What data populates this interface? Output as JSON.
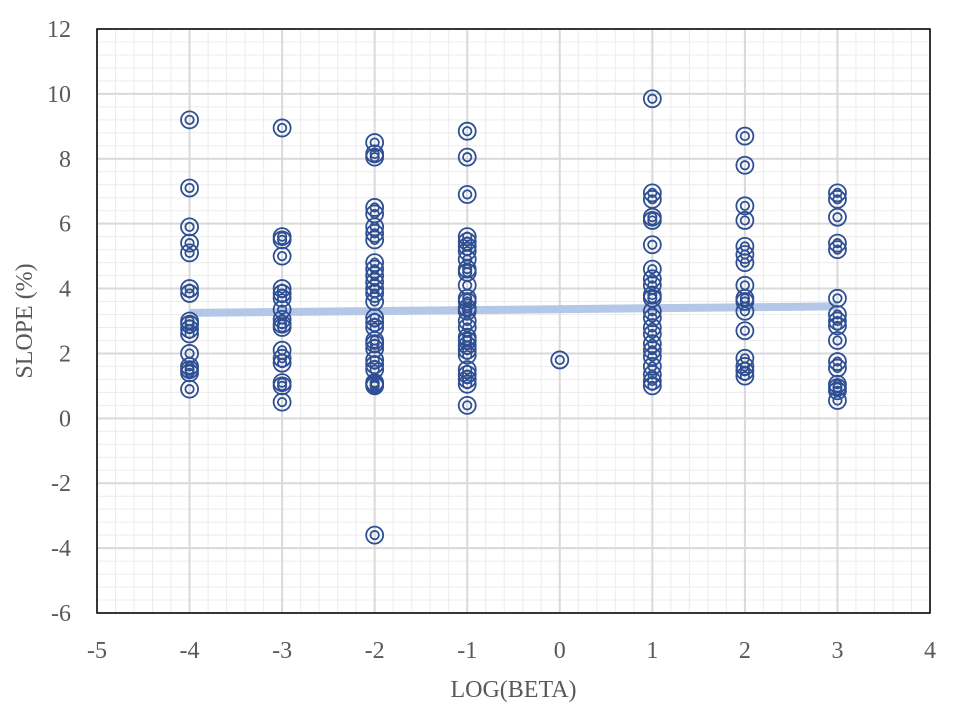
{
  "chart_data": {
    "type": "scatter",
    "title": "",
    "xlabel": "LOG(BETA)",
    "ylabel": "SLOPE (%)",
    "xlim": [
      -5,
      4
    ],
    "ylim": [
      -6,
      12
    ],
    "x_ticks": [
      -5,
      -4,
      -3,
      -2,
      -1,
      0,
      1,
      2,
      3,
      4
    ],
    "y_ticks": [
      -6,
      -4,
      -2,
      0,
      2,
      4,
      6,
      8,
      10,
      12
    ],
    "grid": "major and minor",
    "marker": "double circle",
    "colors": {
      "marker": "#2f4f93",
      "trendline": "#b4c7e7",
      "major_grid": "#d9d9d9",
      "minor_grid": "#ececec",
      "text": "#595959"
    },
    "points": [
      {
        "x": -4,
        "y": 9.2
      },
      {
        "x": -4,
        "y": 7.1
      },
      {
        "x": -4,
        "y": 5.9
      },
      {
        "x": -4,
        "y": 5.4
      },
      {
        "x": -4,
        "y": 5.1
      },
      {
        "x": -4,
        "y": 4.0
      },
      {
        "x": -4,
        "y": 3.85
      },
      {
        "x": -4,
        "y": 3.0
      },
      {
        "x": -4,
        "y": 2.9
      },
      {
        "x": -4,
        "y": 2.75
      },
      {
        "x": -4,
        "y": 2.6
      },
      {
        "x": -4,
        "y": 2.0
      },
      {
        "x": -4,
        "y": 1.6
      },
      {
        "x": -4,
        "y": 1.5
      },
      {
        "x": -4,
        "y": 1.4
      },
      {
        "x": -4,
        "y": 0.9
      },
      {
        "x": -3,
        "y": 8.95
      },
      {
        "x": -3,
        "y": 5.6
      },
      {
        "x": -3,
        "y": 5.5
      },
      {
        "x": -3,
        "y": 5.0
      },
      {
        "x": -3,
        "y": 4.0
      },
      {
        "x": -3,
        "y": 3.85
      },
      {
        "x": -3,
        "y": 3.7
      },
      {
        "x": -3,
        "y": 3.35
      },
      {
        "x": -3,
        "y": 3.05
      },
      {
        "x": -3,
        "y": 2.9
      },
      {
        "x": -3,
        "y": 2.8
      },
      {
        "x": -3,
        "y": 2.1
      },
      {
        "x": -3,
        "y": 1.85
      },
      {
        "x": -3,
        "y": 1.7
      },
      {
        "x": -3,
        "y": 1.1
      },
      {
        "x": -3,
        "y": 1.0
      },
      {
        "x": -3,
        "y": 0.5
      },
      {
        "x": -2,
        "y": 8.5
      },
      {
        "x": -2,
        "y": 8.15
      },
      {
        "x": -2,
        "y": 8.05
      },
      {
        "x": -2,
        "y": 6.5
      },
      {
        "x": -2,
        "y": 6.3
      },
      {
        "x": -2,
        "y": 5.9
      },
      {
        "x": -2,
        "y": 5.7
      },
      {
        "x": -2,
        "y": 5.5
      },
      {
        "x": -2,
        "y": 4.8
      },
      {
        "x": -2,
        "y": 4.6
      },
      {
        "x": -2,
        "y": 4.4
      },
      {
        "x": -2,
        "y": 4.2
      },
      {
        "x": -2,
        "y": 4.0
      },
      {
        "x": -2,
        "y": 3.85
      },
      {
        "x": -2,
        "y": 3.6
      },
      {
        "x": -2,
        "y": 3.1
      },
      {
        "x": -2,
        "y": 2.95
      },
      {
        "x": -2,
        "y": 2.8
      },
      {
        "x": -2,
        "y": 2.4
      },
      {
        "x": -2,
        "y": 2.3
      },
      {
        "x": -2,
        "y": 2.15
      },
      {
        "x": -2,
        "y": 1.8
      },
      {
        "x": -2,
        "y": 1.65
      },
      {
        "x": -2,
        "y": 1.5
      },
      {
        "x": -2,
        "y": 1.1
      },
      {
        "x": -2,
        "y": 1.05
      },
      {
        "x": -2,
        "y": 1.0
      },
      {
        "x": -2,
        "y": -3.6
      },
      {
        "x": -1,
        "y": 8.85
      },
      {
        "x": -1,
        "y": 8.05
      },
      {
        "x": -1,
        "y": 6.9
      },
      {
        "x": -1,
        "y": 5.6
      },
      {
        "x": -1,
        "y": 5.45
      },
      {
        "x": -1,
        "y": 5.3
      },
      {
        "x": -1,
        "y": 5.15
      },
      {
        "x": -1,
        "y": 4.9
      },
      {
        "x": -1,
        "y": 4.6
      },
      {
        "x": -1,
        "y": 4.5
      },
      {
        "x": -1,
        "y": 4.1
      },
      {
        "x": -1,
        "y": 3.7
      },
      {
        "x": -1,
        "y": 3.6
      },
      {
        "x": -1,
        "y": 3.4
      },
      {
        "x": -1,
        "y": 3.3
      },
      {
        "x": -1,
        "y": 3.0
      },
      {
        "x": -1,
        "y": 2.8
      },
      {
        "x": -1,
        "y": 2.5
      },
      {
        "x": -1,
        "y": 2.4
      },
      {
        "x": -1,
        "y": 2.25
      },
      {
        "x": -1,
        "y": 2.1
      },
      {
        "x": -1,
        "y": 1.95
      },
      {
        "x": -1,
        "y": 1.5
      },
      {
        "x": -1,
        "y": 1.35
      },
      {
        "x": -1,
        "y": 1.2
      },
      {
        "x": -1,
        "y": 1.05
      },
      {
        "x": -1,
        "y": 0.4
      },
      {
        "x": 0,
        "y": 1.8
      },
      {
        "x": 1,
        "y": 9.85
      },
      {
        "x": 1,
        "y": 6.95
      },
      {
        "x": 1,
        "y": 6.75
      },
      {
        "x": 1,
        "y": 6.2
      },
      {
        "x": 1,
        "y": 6.1
      },
      {
        "x": 1,
        "y": 5.35
      },
      {
        "x": 1,
        "y": 4.6
      },
      {
        "x": 1,
        "y": 4.3
      },
      {
        "x": 1,
        "y": 4.1
      },
      {
        "x": 1,
        "y": 3.8
      },
      {
        "x": 1,
        "y": 3.7
      },
      {
        "x": 1,
        "y": 3.3
      },
      {
        "x": 1,
        "y": 3.1
      },
      {
        "x": 1,
        "y": 2.8
      },
      {
        "x": 1,
        "y": 2.6
      },
      {
        "x": 1,
        "y": 2.3
      },
      {
        "x": 1,
        "y": 2.1
      },
      {
        "x": 1,
        "y": 1.9
      },
      {
        "x": 1,
        "y": 1.6
      },
      {
        "x": 1,
        "y": 1.35
      },
      {
        "x": 1,
        "y": 1.15
      },
      {
        "x": 1,
        "y": 1.0
      },
      {
        "x": 2,
        "y": 8.7
      },
      {
        "x": 2,
        "y": 7.8
      },
      {
        "x": 2,
        "y": 6.55
      },
      {
        "x": 2,
        "y": 6.1
      },
      {
        "x": 2,
        "y": 5.3
      },
      {
        "x": 2,
        "y": 5.05
      },
      {
        "x": 2,
        "y": 4.8
      },
      {
        "x": 2,
        "y": 4.1
      },
      {
        "x": 2,
        "y": 3.7
      },
      {
        "x": 2,
        "y": 3.6
      },
      {
        "x": 2,
        "y": 3.3
      },
      {
        "x": 2,
        "y": 2.7
      },
      {
        "x": 2,
        "y": 1.85
      },
      {
        "x": 2,
        "y": 1.6
      },
      {
        "x": 2,
        "y": 1.45
      },
      {
        "x": 2,
        "y": 1.3
      },
      {
        "x": 3,
        "y": 6.95
      },
      {
        "x": 3,
        "y": 6.75
      },
      {
        "x": 3,
        "y": 6.2
      },
      {
        "x": 3,
        "y": 5.4
      },
      {
        "x": 3,
        "y": 5.2
      },
      {
        "x": 3,
        "y": 3.7
      },
      {
        "x": 3,
        "y": 3.2
      },
      {
        "x": 3,
        "y": 3.0
      },
      {
        "x": 3,
        "y": 2.85
      },
      {
        "x": 3,
        "y": 2.4
      },
      {
        "x": 3,
        "y": 1.75
      },
      {
        "x": 3,
        "y": 1.55
      },
      {
        "x": 3,
        "y": 1.05
      },
      {
        "x": 3,
        "y": 0.95
      },
      {
        "x": 3,
        "y": 0.85
      },
      {
        "x": 3,
        "y": 0.55
      }
    ],
    "trendline": {
      "type": "linear",
      "x": [
        -4,
        3
      ],
      "y": [
        3.25,
        3.45
      ]
    }
  }
}
